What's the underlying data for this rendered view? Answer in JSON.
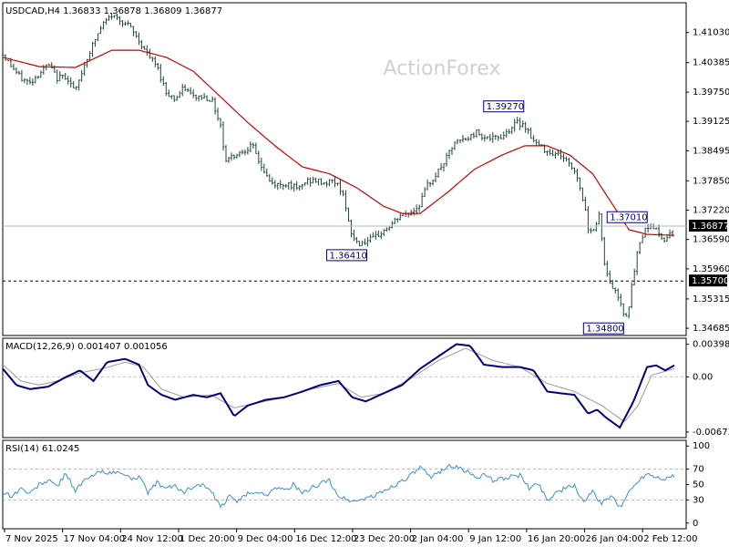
{
  "chart_data": [
    {
      "type": "candlestick",
      "header": "USDCAD,H4  1.36833 1.36878 1.36809 1.36877",
      "watermark": "ActionForex",
      "ylim": [
        1.3455,
        1.4165
      ],
      "y_ticks": [
        "1.41030",
        "1.40385",
        "1.39750",
        "1.39125",
        "1.38495",
        "1.37850",
        "1.37220",
        "1.36590",
        "1.35960",
        "1.35315",
        "1.34685"
      ],
      "x_ticks": [
        "7 Nov 2025",
        "17 Nov 04:00",
        "24 Nov 12:00",
        "1 Dec 20:00",
        "9 Dec 04:00",
        "16 Dec 12:00",
        "23 Dec 20:00",
        "2 Jan 04:00",
        "9 Jan 12:00",
        "16 Jan 20:00",
        "26 Jan 04:00",
        "2 Feb 12:00"
      ],
      "price_anchors": [
        [
          0,
          1.4055
        ],
        [
          12,
          1.4025
        ],
        [
          20,
          1.4005
        ],
        [
          30,
          1.3995
        ],
        [
          40,
          1.4015
        ],
        [
          50,
          1.4035
        ],
        [
          60,
          1.4005
        ],
        [
          70,
          1.401
        ],
        [
          80,
          1.3975
        ],
        [
          90,
          1.4035
        ],
        [
          100,
          1.408
        ],
        [
          110,
          1.412
        ],
        [
          120,
          1.414
        ],
        [
          130,
          1.413
        ],
        [
          140,
          1.4115
        ],
        [
          150,
          1.4085
        ],
        [
          160,
          1.4055
        ],
        [
          170,
          1.403
        ],
        [
          180,
          1.3975
        ],
        [
          190,
          1.396
        ],
        [
          200,
          1.3985
        ],
        [
          210,
          1.3965
        ],
        [
          220,
          1.3965
        ],
        [
          230,
          1.396
        ],
        [
          240,
          1.3905
        ],
        [
          245,
          1.383
        ],
        [
          255,
          1.384
        ],
        [
          265,
          1.385
        ],
        [
          275,
          1.386
        ],
        [
          285,
          1.3815
        ],
        [
          295,
          1.378
        ],
        [
          305,
          1.3775
        ],
        [
          315,
          1.378
        ],
        [
          325,
          1.3765
        ],
        [
          335,
          1.3785
        ],
        [
          345,
          1.3785
        ],
        [
          355,
          1.378
        ],
        [
          365,
          1.3785
        ],
        [
          375,
          1.376
        ],
        [
          380,
          1.37
        ],
        [
          385,
          1.3665
        ],
        [
          392,
          1.365
        ],
        [
          400,
          1.3655
        ],
        [
          408,
          1.366
        ],
        [
          418,
          1.3675
        ],
        [
          428,
          1.369
        ],
        [
          438,
          1.371
        ],
        [
          448,
          1.3715
        ],
        [
          458,
          1.373
        ],
        [
          468,
          1.3775
        ],
        [
          478,
          1.38
        ],
        [
          488,
          1.383
        ],
        [
          496,
          1.386
        ],
        [
          502,
          1.387
        ],
        [
          512,
          1.3875
        ],
        [
          522,
          1.389
        ],
        [
          530,
          1.388
        ],
        [
          540,
          1.3875
        ],
        [
          550,
          1.388
        ],
        [
          558,
          1.3895
        ],
        [
          566,
          1.391
        ],
        [
          575,
          1.3905
        ],
        [
          585,
          1.387
        ],
        [
          595,
          1.3855
        ],
        [
          605,
          1.3845
        ],
        [
          615,
          1.384
        ],
        [
          625,
          1.382
        ],
        [
          632,
          1.38
        ],
        [
          640,
          1.374
        ],
        [
          645,
          1.3685
        ],
        [
          652,
          1.368
        ],
        [
          658,
          1.372
        ],
        [
          662,
          1.361
        ],
        [
          668,
          1.357
        ],
        [
          674,
          1.355
        ],
        [
          680,
          1.353
        ],
        [
          686,
          1.349
        ],
        [
          690,
          1.352
        ],
        [
          695,
          1.358
        ],
        [
          700,
          1.364
        ],
        [
          706,
          1.3675
        ],
        [
          712,
          1.369
        ],
        [
          718,
          1.3685
        ],
        [
          724,
          1.3665
        ],
        [
          730,
          1.366
        ],
        [
          736,
          1.3675
        ],
        [
          740,
          1.3688
        ]
      ],
      "moving_average": {
        "color": "#cc0000",
        "anchors": [
          [
            0,
            1.405
          ],
          [
            40,
            1.403
          ],
          [
            80,
            1.4028
          ],
          [
            120,
            1.4065
          ],
          [
            150,
            1.4065
          ],
          [
            180,
            1.405
          ],
          [
            210,
            1.402
          ],
          [
            240,
            1.3965
          ],
          [
            270,
            1.391
          ],
          [
            300,
            1.386
          ],
          [
            330,
            1.3815
          ],
          [
            360,
            1.38
          ],
          [
            390,
            1.377
          ],
          [
            420,
            1.373
          ],
          [
            440,
            1.3715
          ],
          [
            460,
            1.3715
          ],
          [
            490,
            1.376
          ],
          [
            520,
            1.381
          ],
          [
            550,
            1.384
          ],
          [
            575,
            1.386
          ],
          [
            600,
            1.386
          ],
          [
            625,
            1.384
          ],
          [
            650,
            1.38
          ],
          [
            670,
            1.374
          ],
          [
            690,
            1.368
          ],
          [
            710,
            1.367
          ],
          [
            740,
            1.3668
          ]
        ]
      },
      "current_price": "1.36877",
      "current_price_value": 1.36877,
      "level_line": "1.35700",
      "level_line_value": 1.357,
      "annotations": [
        {
          "text": "1.39270",
          "value": 1.3927,
          "index": 552
        },
        {
          "text": "1.37010",
          "value": 1.3701,
          "index": 680
        },
        {
          "text": "1.36410",
          "value": 1.3641,
          "index": 379
        },
        {
          "text": "1.34800",
          "value": 1.348,
          "index": 660
        }
      ]
    },
    {
      "type": "line",
      "title": "MACD(12,26,9) 0.001407 0.001056",
      "ylim": [
        -0.0072,
        0.0045
      ],
      "y_ticks": [
        "0.003982",
        "0.00",
        "-0.006737"
      ],
      "series": [
        {
          "color": "#000080",
          "values": [
            [
              0,
              0.001
            ],
            [
              15,
              -0.001
            ],
            [
              30,
              -0.0015
            ],
            [
              50,
              -0.0012
            ],
            [
              70,
              0.0
            ],
            [
              85,
              0.0008
            ],
            [
              100,
              -0.0005
            ],
            [
              115,
              0.0018
            ],
            [
              135,
              0.0022
            ],
            [
              150,
              0.0015
            ],
            [
              160,
              -0.001
            ],
            [
              175,
              -0.0022
            ],
            [
              190,
              -0.0028
            ],
            [
              210,
              -0.0022
            ],
            [
              225,
              -0.0025
            ],
            [
              240,
              -0.002
            ],
            [
              255,
              -0.0048
            ],
            [
              270,
              -0.0035
            ],
            [
              290,
              -0.0028
            ],
            [
              310,
              -0.0025
            ],
            [
              330,
              -0.0018
            ],
            [
              350,
              -0.001
            ],
            [
              370,
              -0.0005
            ],
            [
              385,
              -0.0025
            ],
            [
              400,
              -0.003
            ],
            [
              420,
              -0.002
            ],
            [
              440,
              -0.001
            ],
            [
              460,
              0.001
            ],
            [
              480,
              0.0025
            ],
            [
              500,
              0.004
            ],
            [
              515,
              0.0038
            ],
            [
              530,
              0.0015
            ],
            [
              550,
              0.0012
            ],
            [
              570,
              0.0012
            ],
            [
              585,
              0.0008
            ],
            [
              600,
              -0.0018
            ],
            [
              615,
              -0.002
            ],
            [
              630,
              -0.0022
            ],
            [
              645,
              -0.0045
            ],
            [
              655,
              -0.004
            ],
            [
              665,
              -0.005
            ],
            [
              680,
              -0.0062
            ],
            [
              695,
              -0.003
            ],
            [
              710,
              0.0012
            ],
            [
              720,
              0.0014
            ],
            [
              730,
              0.0008
            ],
            [
              740,
              0.0014
            ]
          ]
        },
        {
          "color": "#9a9a9a",
          "values": [
            [
              0,
              0.0015
            ],
            [
              20,
              -0.0005
            ],
            [
              40,
              -0.001
            ],
            [
              60,
              -0.0005
            ],
            [
              85,
              0.0005
            ],
            [
              110,
              0.001
            ],
            [
              135,
              0.0018
            ],
            [
              155,
              0.0012
            ],
            [
              175,
              -0.0015
            ],
            [
              200,
              -0.0025
            ],
            [
              230,
              -0.0022
            ],
            [
              255,
              -0.0038
            ],
            [
              280,
              -0.0032
            ],
            [
              310,
              -0.0025
            ],
            [
              340,
              -0.0015
            ],
            [
              370,
              -0.0008
            ],
            [
              395,
              -0.0025
            ],
            [
              420,
              -0.002
            ],
            [
              450,
              -0.0002
            ],
            [
              480,
              0.002
            ],
            [
              510,
              0.0035
            ],
            [
              540,
              0.002
            ],
            [
              570,
              0.0012
            ],
            [
              600,
              -0.0008
            ],
            [
              630,
              -0.0018
            ],
            [
              660,
              -0.0035
            ],
            [
              685,
              -0.0055
            ],
            [
              700,
              -0.0035
            ],
            [
              715,
              0.0002
            ],
            [
              740,
              0.001
            ]
          ]
        }
      ]
    },
    {
      "type": "line",
      "title": "RSI(14) 61.0245",
      "ylim": [
        -5,
        105
      ],
      "y_ticks": [
        "100",
        "70",
        "50",
        "30",
        "0"
      ],
      "levels": [
        70,
        30
      ],
      "series": [
        {
          "color": "#3a8fd8",
          "values": [
            [
              0,
              40
            ],
            [
              10,
              35
            ],
            [
              20,
              45
            ],
            [
              30,
              38
            ],
            [
              40,
              50
            ],
            [
              50,
              55
            ],
            [
              60,
              48
            ],
            [
              70,
              65
            ],
            [
              80,
              42
            ],
            [
              90,
              55
            ],
            [
              100,
              62
            ],
            [
              110,
              68
            ],
            [
              120,
              64
            ],
            [
              130,
              66
            ],
            [
              140,
              58
            ],
            [
              150,
              60
            ],
            [
              160,
              40
            ],
            [
              170,
              52
            ],
            [
              180,
              45
            ],
            [
              190,
              48
            ],
            [
              200,
              40
            ],
            [
              210,
              48
            ],
            [
              220,
              50
            ],
            [
              230,
              40
            ],
            [
              240,
              20
            ],
            [
              250,
              35
            ],
            [
              260,
              28
            ],
            [
              270,
              38
            ],
            [
              280,
              42
            ],
            [
              290,
              35
            ],
            [
              300,
              48
            ],
            [
              310,
              42
            ],
            [
              320,
              50
            ],
            [
              330,
              38
            ],
            [
              340,
              45
            ],
            [
              350,
              52
            ],
            [
              360,
              55
            ],
            [
              370,
              35
            ],
            [
              380,
              30
            ],
            [
              390,
              28
            ],
            [
              400,
              33
            ],
            [
              410,
              35
            ],
            [
              420,
              42
            ],
            [
              430,
              48
            ],
            [
              440,
              55
            ],
            [
              450,
              62
            ],
            [
              460,
              72
            ],
            [
              470,
              60
            ],
            [
              480,
              65
            ],
            [
              490,
              75
            ],
            [
              500,
              72
            ],
            [
              510,
              68
            ],
            [
              520,
              60
            ],
            [
              530,
              62
            ],
            [
              540,
              55
            ],
            [
              550,
              58
            ],
            [
              560,
              60
            ],
            [
              570,
              62
            ],
            [
              580,
              45
            ],
            [
              590,
              52
            ],
            [
              600,
              30
            ],
            [
              610,
              40
            ],
            [
              620,
              45
            ],
            [
              630,
              48
            ],
            [
              640,
              28
            ],
            [
              650,
              40
            ],
            [
              660,
              25
            ],
            [
              670,
              35
            ],
            [
              680,
              20
            ],
            [
              690,
              40
            ],
            [
              700,
              55
            ],
            [
              710,
              65
            ],
            [
              720,
              60
            ],
            [
              730,
              58
            ],
            [
              740,
              61
            ]
          ]
        }
      ]
    }
  ]
}
